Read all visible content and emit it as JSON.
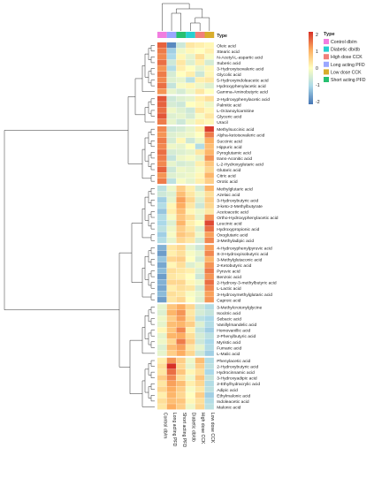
{
  "chart_data": {
    "type": "heatmap",
    "title": "",
    "columns": [
      "Control db/m",
      "Long acting PFD",
      "Short acting PFD",
      "Diabetic db/db",
      "High dose CCK",
      "Low dose CCK"
    ],
    "column_groups": [
      "Control db/m",
      "Long acting PFD",
      "Short acting PFD",
      "Diabetic db/db",
      "High dose CCK",
      "Low dose CCK"
    ],
    "annotation_label": "Type",
    "legend": {
      "title": "Type",
      "items": [
        {
          "label": "Control db/m",
          "color": "#f27de0"
        },
        {
          "label": "Diabetic db/db",
          "color": "#26cfcf"
        },
        {
          "label": "High dose CCK",
          "color": "#f0807a"
        },
        {
          "label": "Long acting PFD",
          "color": "#9aa7ff"
        },
        {
          "label": "Low dose CCK",
          "color": "#d8ad2c"
        },
        {
          "label": "Short acting PFD",
          "color": "#27c070"
        }
      ]
    },
    "colorbar": {
      "ticks": [
        2,
        1,
        0,
        -1,
        -2
      ],
      "colors": [
        "#d73027",
        "#fdae61",
        "#ffffbf",
        "#abd9e9",
        "#4575b4"
      ]
    },
    "row_clusters": [
      {
        "rows": [
          "Oleic acid",
          "Stearic acid",
          "N-Acetyl-L-aspartic acid",
          "Suberic acid",
          "3-Hydroxyisovaleric acid",
          "Glycolic acid",
          "5-Hydroxyindoleacetic acid",
          "Hydroxyphenylacetic acid",
          "Gamma-Aminobutyric acid"
        ],
        "values": [
          [
            1.6,
            -1.8,
            -0.6,
            0.3,
            0.2,
            0.1
          ],
          [
            1.4,
            -1.1,
            -0.2,
            0.1,
            0.0,
            0.2
          ],
          [
            1.3,
            -1.0,
            0.1,
            -0.3,
            0.4,
            -0.1
          ],
          [
            1.5,
            -0.6,
            0.3,
            -0.4,
            0.2,
            -0.5
          ],
          [
            1.2,
            -0.9,
            0.2,
            0.0,
            -0.3,
            0.1
          ],
          [
            1.4,
            -0.5,
            0.0,
            0.2,
            -0.6,
            0.1
          ],
          [
            1.3,
            -0.4,
            -0.3,
            -0.8,
            0.2,
            0.3
          ],
          [
            1.5,
            -0.7,
            -0.1,
            0.1,
            -0.2,
            -0.4
          ],
          [
            1.2,
            -0.3,
            -0.5,
            -0.2,
            0.3,
            0.0
          ]
        ]
      },
      {
        "rows": [
          "2-Hydroxyphenylacetic acid",
          "Palmitic acid",
          "L-Octanoylcarnitine",
          "Glyceric acid",
          "Uracil"
        ],
        "values": [
          [
            1.7,
            -0.6,
            -0.4,
            -0.3,
            0.2,
            0.4
          ],
          [
            1.6,
            -0.5,
            -0.6,
            0.0,
            0.1,
            -0.2
          ],
          [
            1.5,
            -0.2,
            -0.4,
            -0.6,
            0.3,
            0.1
          ],
          [
            1.7,
            -0.4,
            -0.3,
            -0.5,
            -0.1,
            0.3
          ],
          [
            1.4,
            -0.3,
            -0.6,
            -0.2,
            0.2,
            0.1
          ]
        ]
      },
      {
        "rows": [
          "Methylsuccinic acid",
          "Alpha-ketoisovaleric acid",
          "Succinic acid",
          "Hippuric acid",
          "Pyroglutamic acid",
          "trans-Aconitic acid",
          "L-2-Hydroxyglutaric acid",
          "Glutaric acid",
          "Citric acid",
          "Orotic acid"
        ],
        "values": [
          [
            1.3,
            -0.6,
            -0.5,
            -0.3,
            0.2,
            1.9
          ],
          [
            1.2,
            -0.4,
            -0.3,
            -0.2,
            0.0,
            1.4
          ],
          [
            1.4,
            -0.5,
            0.1,
            -0.6,
            -0.2,
            1.0
          ],
          [
            1.3,
            -0.2,
            -0.3,
            0.0,
            -0.9,
            0.8
          ],
          [
            1.5,
            -0.5,
            -0.4,
            -0.3,
            0.3,
            0.9
          ],
          [
            1.4,
            -0.7,
            -0.2,
            -0.1,
            -0.3,
            1.2
          ],
          [
            1.3,
            -0.3,
            -0.5,
            -0.4,
            0.2,
            0.7
          ],
          [
            1.6,
            -0.6,
            -0.2,
            -0.3,
            -0.1,
            0.5
          ],
          [
            1.2,
            -0.4,
            -0.3,
            -0.2,
            0.1,
            0.9
          ],
          [
            1.4,
            -0.8,
            -0.1,
            -0.3,
            0.2,
            0.6
          ]
        ]
      },
      {
        "rows": [
          "Methylglutaric acid",
          "Azelaic acid",
          "3-Hydroxybutyric acid",
          "3-keto-2-Methylbutyrate",
          "Acetoacetic acid",
          "Ortho-Hydroxyphenylacetic acid",
          "Leucinic acid",
          "Hydroxypropionic acid",
          "Oxoglutaric acid",
          "3-Methyladipic acid"
        ],
        "values": [
          [
            -0.8,
            -0.2,
            0.6,
            0.2,
            -0.5,
            0.9
          ],
          [
            -0.6,
            -0.4,
            0.8,
            0.3,
            -0.2,
            0.4
          ],
          [
            -1.1,
            -0.3,
            1.1,
            0.5,
            -0.4,
            0.6
          ],
          [
            -0.9,
            0.1,
            1.0,
            0.3,
            -0.6,
            0.5
          ],
          [
            -1.2,
            0.2,
            0.8,
            0.1,
            -0.2,
            0.3
          ],
          [
            -0.9,
            -0.1,
            0.7,
            0.4,
            -0.3,
            1.2
          ],
          [
            -1.0,
            -0.4,
            0.9,
            0.2,
            0.0,
            1.8
          ],
          [
            -0.8,
            -0.2,
            0.6,
            0.3,
            -0.4,
            1.5
          ],
          [
            -1.1,
            -0.1,
            0.7,
            0.5,
            -0.2,
            1.1
          ],
          [
            -0.9,
            -0.3,
            0.5,
            0.3,
            -0.5,
            1.3
          ]
        ]
      },
      {
        "rows": [
          "4-Hydroxyphenylpyruvic acid",
          "S-3-Hydroxyisobutyric acid",
          "3-Methylglutaconic acid",
          "2-Ketobutyric acid",
          "Pyruvic acid",
          "Benzoic acid",
          "2-Hydroxy-3-methylbutyric acid",
          "L-Lactic acid",
          "3-Hydroxymethylglutaric acid",
          "Caproic acid"
        ],
        "values": [
          [
            -1.4,
            0.3,
            0.5,
            -0.3,
            -0.6,
            1.1
          ],
          [
            -1.6,
            0.2,
            0.4,
            -0.1,
            -0.3,
            1.3
          ],
          [
            -1.2,
            0.5,
            0.6,
            0.0,
            -0.5,
            0.9
          ],
          [
            -1.5,
            0.1,
            0.4,
            -0.4,
            -0.2,
            1.2
          ],
          [
            -1.3,
            0.4,
            0.3,
            0.2,
            -0.4,
            1.4
          ],
          [
            -1.6,
            0.3,
            0.2,
            0.0,
            -0.6,
            1.2
          ],
          [
            -1.4,
            0.5,
            0.5,
            0.1,
            -0.2,
            1.5
          ],
          [
            -1.5,
            0.2,
            0.4,
            0.3,
            -0.5,
            1.3
          ],
          [
            -1.3,
            0.4,
            0.3,
            -0.1,
            -0.3,
            1.1
          ],
          [
            -1.6,
            0.3,
            0.5,
            0.0,
            -0.4,
            1.2
          ]
        ]
      },
      {
        "rows": [
          "3-Methylcrotonylglycine",
          "Isocitric acid",
          "Sebacic acid",
          "Vanillylmandelic acid",
          "Homovanillic acid",
          "2-Phenylbutyric acid",
          "Myristic acid",
          "Fumaric acid",
          "L-Malic acid"
        ],
        "values": [
          [
            -0.3,
            0.7,
            1.0,
            0.5,
            -0.6,
            -0.9
          ],
          [
            -0.4,
            0.9,
            1.2,
            0.3,
            -0.5,
            -0.7
          ],
          [
            -0.2,
            0.6,
            1.1,
            0.4,
            -0.8,
            -1.0
          ],
          [
            -0.3,
            0.8,
            0.9,
            0.6,
            -0.4,
            -0.9
          ],
          [
            0.1,
            0.7,
            1.3,
            0.2,
            -0.7,
            -1.1
          ],
          [
            -0.3,
            0.9,
            1.0,
            0.4,
            -0.5,
            -0.8
          ],
          [
            -0.2,
            0.5,
            1.4,
            0.6,
            -0.6,
            -1.0
          ],
          [
            -0.4,
            0.8,
            1.1,
            0.3,
            -0.3,
            -0.9
          ],
          [
            -0.3,
            0.6,
            1.0,
            0.5,
            -0.6,
            -1.1
          ]
        ]
      },
      {
        "rows": [
          "Phenylacetic acid",
          "2-Hydroxybutyric acid",
          "Hydrocinnamic acid",
          "3-Hydroxyadipic acid",
          "2-Ethylhydracrylic acid",
          "Adipic acid",
          "Ethylmalonic acid",
          "Indoleacetic acid",
          "Malonic acid"
        ],
        "values": [
          [
            0.2,
            1.2,
            0.6,
            -0.2,
            0.8,
            -0.9
          ],
          [
            0.4,
            2.0,
            0.5,
            -0.3,
            0.6,
            -0.8
          ],
          [
            0.3,
            1.5,
            0.7,
            0.1,
            0.4,
            -1.0
          ],
          [
            0.6,
            1.3,
            0.4,
            -0.2,
            0.7,
            -0.7
          ],
          [
            0.3,
            1.1,
            0.8,
            0.2,
            0.5,
            -0.9
          ],
          [
            0.5,
            1.0,
            0.6,
            -0.1,
            0.3,
            -0.8
          ],
          [
            0.2,
            0.9,
            0.5,
            0.0,
            0.6,
            -1.1
          ],
          [
            0.4,
            0.8,
            0.7,
            0.1,
            0.4,
            -0.9
          ],
          [
            0.3,
            1.0,
            0.6,
            -0.2,
            0.5,
            -0.8
          ]
        ]
      }
    ]
  }
}
